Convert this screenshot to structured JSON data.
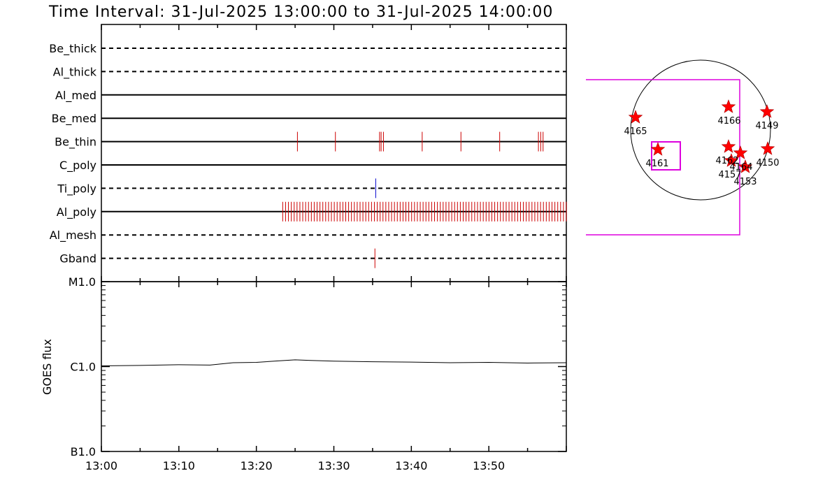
{
  "title": "Time Interval: 31-Jul-2025 13:00:00 to 31-Jul-2025 14:00:00",
  "chart_data": [
    {
      "type": "event-timeline",
      "x_range": [
        "13:00",
        "14:00"
      ],
      "x_tick_labels": [
        "13:00",
        "13:10",
        "13:20",
        "13:30",
        "13:40",
        "13:50"
      ],
      "rows": [
        {
          "label": "Be_thick",
          "style": "dashed",
          "events": []
        },
        {
          "label": "Al_thick",
          "style": "dashed",
          "events": []
        },
        {
          "label": "Al_med",
          "style": "solid",
          "events": []
        },
        {
          "label": "Be_med",
          "style": "solid",
          "events": []
        },
        {
          "label": "Be_thin",
          "style": "solid",
          "color": "#cc0000",
          "events": [
            25.3,
            30.2,
            35.9,
            36.1,
            36.4,
            41.4,
            46.4,
            51.4,
            56.4,
            56.7,
            57.0
          ]
        },
        {
          "label": "C_poly",
          "style": "solid",
          "events": []
        },
        {
          "label": "Ti_poly",
          "style": "dashed",
          "color": "#0000cc",
          "events": [
            35.4
          ]
        },
        {
          "label": "Al_poly",
          "style": "solid",
          "color": "#cc0000",
          "events_range": [
            23.4,
            60.0
          ],
          "event_count": 100
        },
        {
          "label": "Al_mesh",
          "style": "dashed",
          "events": []
        },
        {
          "label": "Gband",
          "style": "dashed",
          "color": "#cc0000",
          "events": [
            35.3
          ]
        }
      ]
    },
    {
      "type": "line",
      "ylabel": "GOES flux",
      "y_scale": "log",
      "y_tick_labels": [
        "M1.0",
        "C1.0",
        "B1.0"
      ],
      "x_tick_labels": [
        "13:00",
        "13:10",
        "13:20",
        "13:30",
        "13:40",
        "13:50"
      ],
      "x": [
        0,
        5,
        10,
        14,
        17,
        20,
        23,
        25,
        27,
        30,
        35,
        40,
        45,
        50,
        55,
        60
      ],
      "y": [
        "1.02e-6",
        "1.03e-6",
        "1.05e-6",
        "1.04e-6",
        "1.11e-6",
        "1.12e-6",
        "1.17e-6",
        "1.20e-6",
        "1.18e-6",
        "1.16e-6",
        "1.14e-6",
        "1.13e-6",
        "1.11e-6",
        "1.12e-6",
        "1.10e-6",
        "1.11e-6"
      ]
    }
  ],
  "solar_map": {
    "active_regions": [
      "4165",
      "4166",
      "4149",
      "4161",
      "4150",
      "4157",
      "4153",
      "4164",
      "4162"
    ]
  }
}
